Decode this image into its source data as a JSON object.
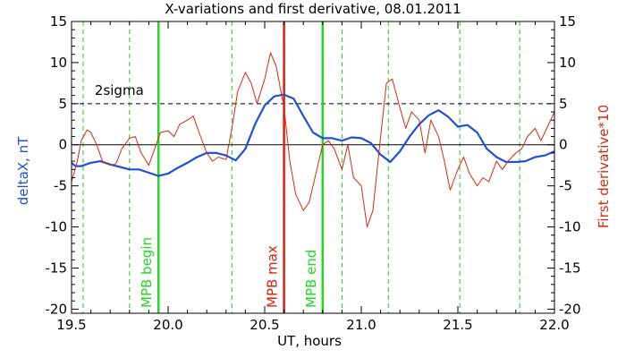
{
  "chart_data": {
    "type": "line",
    "title": "X-variations and first derivative, 08.01.2011",
    "xlabel": "UT, hours",
    "ylabel": "deltaX, nT",
    "ylabel_right": "First derivative*10",
    "xlim": [
      19.5,
      22.0
    ],
    "ylim": [
      -20.5,
      15
    ],
    "xticks": [
      "19.5",
      "20.0",
      "20.5",
      "21.0",
      "21.5",
      "22.0"
    ],
    "yticks": [
      "15",
      "10",
      "5",
      "0",
      "-5",
      "-10",
      "-15",
      "-20"
    ],
    "colors": {
      "deltaX": "#1e50d8",
      "derivative": "#d42a10",
      "mpb_lines": "#22d822",
      "mpb_max": "#e0200a",
      "grid_dashed": "#22c822",
      "axes": "#000000"
    },
    "series": [
      {
        "key": "deltaX",
        "x": [
          19.5,
          19.52,
          19.55,
          19.6,
          19.65,
          19.7,
          19.75,
          19.8,
          19.85,
          19.9,
          19.95,
          20.0,
          20.05,
          20.1,
          20.15,
          20.2,
          20.25,
          20.3,
          20.35,
          20.4,
          20.45,
          20.5,
          20.55,
          20.6,
          20.65,
          20.7,
          20.75,
          20.8,
          20.85,
          20.9,
          20.95,
          21.0,
          21.05,
          21.1,
          21.15,
          21.2,
          21.25,
          21.3,
          21.35,
          21.4,
          21.45,
          21.5,
          21.55,
          21.6,
          21.65,
          21.7,
          21.75,
          21.8,
          21.85,
          21.9,
          21.95,
          22.0
        ],
        "values": [
          -2.2,
          -2.6,
          -2.6,
          -2.2,
          -2.0,
          -2.4,
          -2.7,
          -3.0,
          -3.0,
          -3.4,
          -3.8,
          -3.5,
          -2.8,
          -2.2,
          -1.5,
          -1.0,
          -1.0,
          -1.3,
          -1.9,
          -0.5,
          2.5,
          4.8,
          5.9,
          6.1,
          5.6,
          3.5,
          1.5,
          0.8,
          0.8,
          0.5,
          0.9,
          0.8,
          0.2,
          -1.2,
          -2.1,
          -0.8,
          1.0,
          2.5,
          3.6,
          4.2,
          3.4,
          2.2,
          2.4,
          1.5,
          -0.5,
          -1.5,
          -2.1,
          -2.1,
          -2.0,
          -1.5,
          -1.3,
          -0.8
        ]
      },
      {
        "key": "derivative",
        "x": [
          19.5,
          19.53,
          19.55,
          19.58,
          19.6,
          19.63,
          19.66,
          19.7,
          19.73,
          19.76,
          19.8,
          19.83,
          19.86,
          19.9,
          19.93,
          19.96,
          20.0,
          20.03,
          20.06,
          20.1,
          20.13,
          20.16,
          20.2,
          20.23,
          20.26,
          20.3,
          20.33,
          20.36,
          20.4,
          20.43,
          20.46,
          20.5,
          20.53,
          20.56,
          20.6,
          20.63,
          20.66,
          20.7,
          20.73,
          20.76,
          20.8,
          20.83,
          20.86,
          20.9,
          20.93,
          20.96,
          21.0,
          21.03,
          21.06,
          21.1,
          21.13,
          21.16,
          21.2,
          21.23,
          21.26,
          21.3,
          21.33,
          21.36,
          21.4,
          21.43,
          21.46,
          21.5,
          21.53,
          21.56,
          21.6,
          21.63,
          21.66,
          21.7,
          21.73,
          21.76,
          21.8,
          21.83,
          21.86,
          21.9,
          21.93,
          21.96,
          22.0
        ],
        "values": [
          -4.5,
          -2.0,
          0.5,
          1.8,
          1.5,
          0.0,
          -2.0,
          -2.5,
          -2.3,
          -0.5,
          0.8,
          1.0,
          -1.0,
          -2.5,
          -0.5,
          1.5,
          1.7,
          1.0,
          2.5,
          3.0,
          3.5,
          1.5,
          -1.0,
          -2.0,
          -1.5,
          -1.8,
          2.0,
          6.5,
          8.8,
          7.5,
          5.0,
          8.0,
          11.2,
          9.5,
          4.5,
          -2.0,
          -6.0,
          -8.0,
          -7.0,
          -4.0,
          0.0,
          0.5,
          -0.5,
          -3.0,
          0.0,
          -4.0,
          -5.0,
          -10.0,
          -8.0,
          1.0,
          7.5,
          8.0,
          4.5,
          2.0,
          4.0,
          3.0,
          -1.0,
          3.0,
          1.0,
          -2.0,
          -5.5,
          -3.0,
          -1.5,
          -3.5,
          -5.0,
          -4.0,
          -4.5,
          -2.0,
          -3.0,
          -2.0,
          -1.0,
          -0.5,
          1.0,
          2.0,
          0.5,
          2.0,
          4.0
        ]
      }
    ],
    "threshold": {
      "label": "2sigma",
      "value": 5
    },
    "zero_line": 0,
    "dashed_verticals": [
      19.56,
      19.8,
      20.33,
      20.9,
      21.14,
      21.51,
      21.82
    ],
    "markers": [
      {
        "key": "mpb_begin",
        "label": "MPB begin",
        "x": 19.95
      },
      {
        "key": "mpb_max",
        "label": "MPB max",
        "x": 20.6
      },
      {
        "key": "mpb_end",
        "label": "MPB end",
        "x": 20.8
      }
    ]
  }
}
